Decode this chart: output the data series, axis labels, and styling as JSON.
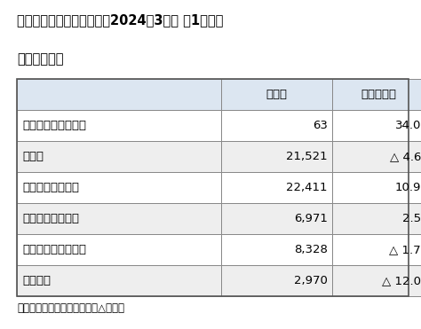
{
  "title_line1": "ゼビオホールディングス、2024年3月期 ㄄1四半期",
  "title_line2": "部門別売上高",
  "header_col0": "",
  "header_col1": "売上高",
  "header_col2": "（増減率）",
  "rows": [
    [
      "ウィンタースポーツ",
      "63",
      "34.0"
    ],
    [
      "ゴルフ",
      "21,521",
      "△ 4.6"
    ],
    [
      "一般競技スポーツ",
      "22,411",
      "10.9"
    ],
    [
      "スポーツアパレル",
      "6,971",
      "2.5"
    ],
    [
      "アウトドア・その他",
      "8,328",
      "△ 1.7"
    ],
    [
      "その他計",
      "2,970",
      "△ 12.0"
    ]
  ],
  "footnote": "単位は百万円。増減率は％、△は減。",
  "bg_color": "#ffffff",
  "header_bg": "#dce6f1",
  "row_odd_bg": "#ffffff",
  "row_even_bg": "#eeeeee",
  "border_color": "#888888",
  "text_color": "#000000",
  "title_fontsize": 10.5,
  "header_fontsize": 9.5,
  "cell_fontsize": 9.5,
  "footnote_fontsize": 8.5
}
